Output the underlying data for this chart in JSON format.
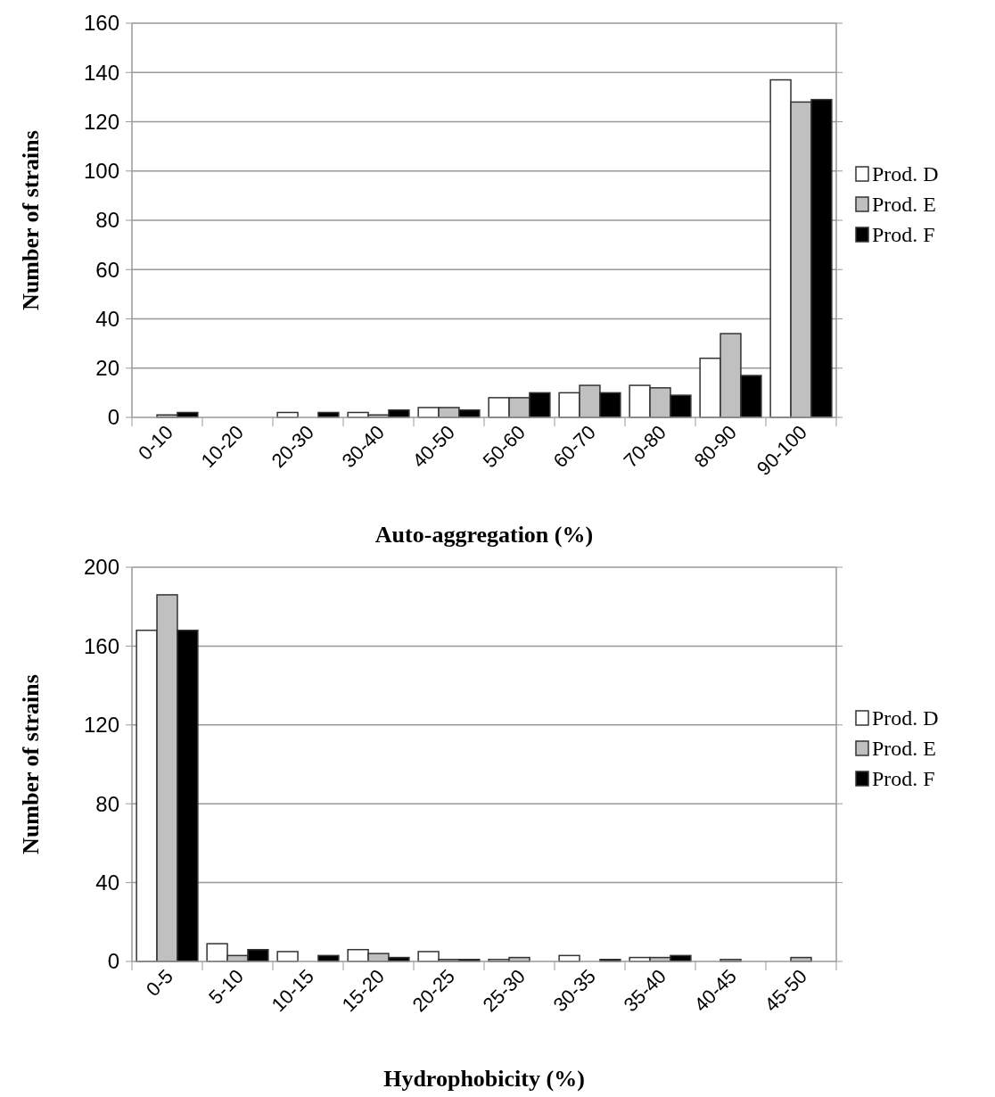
{
  "chart_data": [
    {
      "type": "bar",
      "xlabel": "Auto-aggregation (%)",
      "ylabel": "Number of strains",
      "categories": [
        "0-10",
        "10-20",
        "20-30",
        "30-40",
        "40-50",
        "50-60",
        "60-70",
        "70-80",
        "80-90",
        "90-100"
      ],
      "series": [
        {
          "name": "Prod. D",
          "color": "#ffffff",
          "values": [
            0,
            0,
            2,
            2,
            4,
            8,
            10,
            13,
            24,
            137
          ]
        },
        {
          "name": "Prod. E",
          "color": "#c0c0c0",
          "values": [
            1,
            0,
            0,
            1,
            4,
            8,
            13,
            12,
            34,
            128
          ]
        },
        {
          "name": "Prod. F",
          "color": "#000000",
          "values": [
            2,
            0,
            2,
            3,
            3,
            10,
            10,
            9,
            17,
            129
          ]
        }
      ],
      "ylim": [
        0,
        160
      ],
      "yticks": [
        0,
        20,
        40,
        60,
        80,
        100,
        120,
        140,
        160
      ],
      "grid": "y",
      "legend": "right"
    },
    {
      "type": "bar",
      "xlabel": "Hydrophobicity (%)",
      "ylabel": "Number of strains",
      "categories": [
        "0-5",
        "5-10",
        "10-15",
        "15-20",
        "20-25",
        "25-30",
        "30-35",
        "35-40",
        "40-45",
        "45-50"
      ],
      "series": [
        {
          "name": "Prod. D",
          "color": "#ffffff",
          "values": [
            168,
            9,
            5,
            6,
            5,
            1,
            3,
            2,
            0,
            0
          ]
        },
        {
          "name": "Prod. E",
          "color": "#c0c0c0",
          "values": [
            186,
            3,
            0,
            4,
            1,
            2,
            0,
            2,
            1,
            2
          ]
        },
        {
          "name": "Prod. F",
          "color": "#000000",
          "values": [
            168,
            6,
            3,
            2,
            1,
            0,
            1,
            3,
            0,
            0
          ]
        }
      ],
      "ylim": [
        0,
        200
      ],
      "yticks": [
        0,
        40,
        80,
        120,
        160,
        200
      ],
      "grid": "y",
      "legend": "right"
    }
  ]
}
